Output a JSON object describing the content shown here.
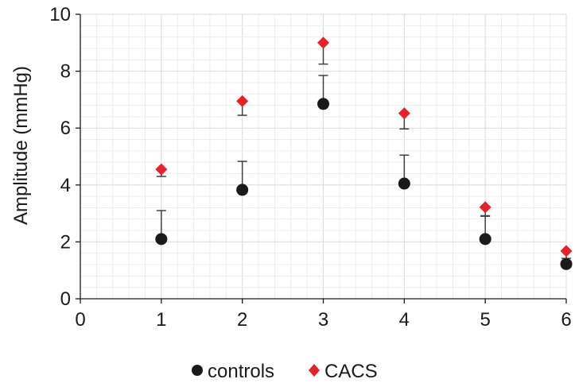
{
  "chart_data": {
    "type": "scatter",
    "title": "",
    "xlabel": "",
    "ylabel": "Amplitude (mmHg)",
    "xlim": [
      0,
      6
    ],
    "ylim": [
      0,
      10
    ],
    "x_ticks": [
      "0",
      "1",
      "2",
      "3",
      "4",
      "5",
      "6"
    ],
    "y_ticks": [
      "0",
      "2",
      "4",
      "6",
      "8",
      "10"
    ],
    "grid": "major and minor, light gray",
    "legend_position": "bottom-center",
    "series": [
      {
        "name": "controls",
        "marker": "circle",
        "color": "#1a1a1a",
        "x": [
          1,
          2,
          3,
          4,
          5,
          6
        ],
        "y": [
          2.1,
          3.83,
          6.85,
          4.05,
          2.1,
          1.22
        ],
        "error_upper": [
          1.0,
          1.0,
          1.0,
          1.0,
          0.8,
          0.2
        ]
      },
      {
        "name": "CACS",
        "marker": "diamond",
        "color": "#e8202a",
        "x": [
          1,
          2,
          3,
          4,
          5,
          6
        ],
        "y": [
          4.55,
          6.95,
          9.0,
          6.52,
          3.22,
          1.68
        ],
        "error_lower": [
          0.25,
          0.5,
          0.75,
          0.55,
          0.3,
          0.35
        ]
      }
    ]
  }
}
